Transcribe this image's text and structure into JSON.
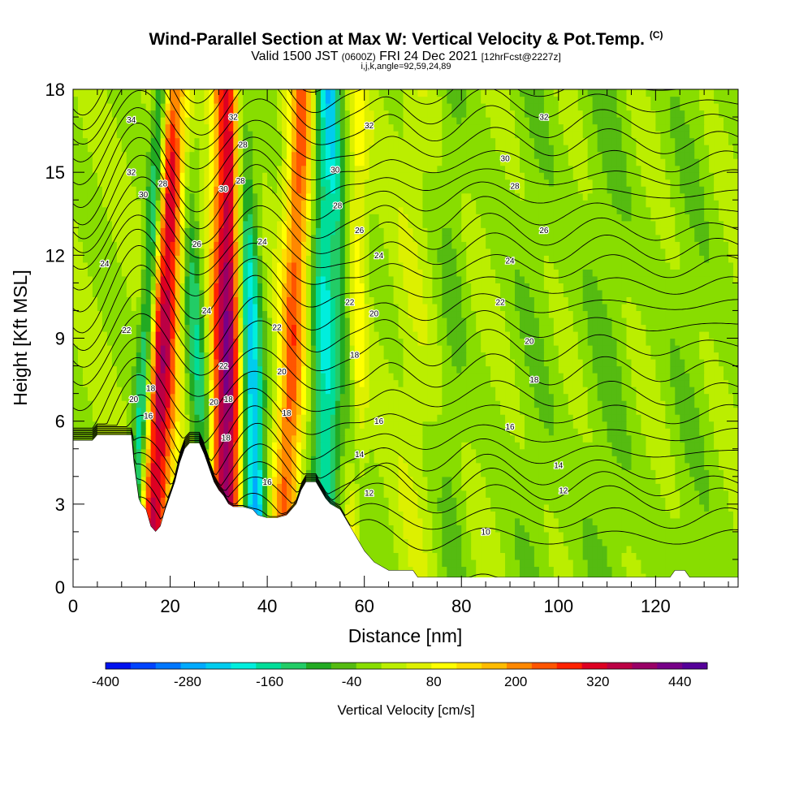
{
  "title": {
    "main": "Wind-Parallel Section at Max W: Vertical Velocity & Pot.Temp.",
    "mark": "(C)",
    "valid_prefix": "Valid 1500 JST",
    "valid_utc": "(0600Z)",
    "valid_date": "FRI 24 Dec 2021",
    "forecast": "[12hrFcst@2227z]",
    "indices": "i,j,k,angle=92,59,24,89"
  },
  "colors": {
    "terrain": "#ffffff",
    "contour": "#000000",
    "scale": [
      "#0011ee",
      "#0044ff",
      "#0077ff",
      "#00aaff",
      "#00ccee",
      "#00eedd",
      "#00dd99",
      "#22cc66",
      "#22aa22",
      "#55bb11",
      "#88dd00",
      "#bbee00",
      "#ddf000",
      "#ffff00",
      "#ffdd00",
      "#ffbb00",
      "#ff8800",
      "#ff5500",
      "#ff2200",
      "#dd0022",
      "#bb0044",
      "#990066",
      "#770088",
      "#550099"
    ]
  },
  "chart_data": {
    "type": "heatmap",
    "xlabel": "Distance [nm]",
    "ylabel": "Height [Kft MSL]",
    "xlim": [
      0,
      137
    ],
    "ylim": [
      0,
      18
    ],
    "xticks": [
      0,
      20,
      40,
      60,
      80,
      100,
      120
    ],
    "yticks": [
      0,
      3,
      6,
      9,
      12,
      15,
      18
    ],
    "colorbar": {
      "label": "Vertical Velocity [cm/s]",
      "min": -400,
      "max": 480,
      "step": 40,
      "tick_labels": [
        "-400",
        "-280",
        "-160",
        "-40",
        "80",
        "200",
        "320",
        "440"
      ]
    },
    "terrain_kft": [
      [
        0,
        5.3
      ],
      [
        4,
        5.3
      ],
      [
        5,
        5.5
      ],
      [
        12,
        5.5
      ],
      [
        12.5,
        4.5
      ],
      [
        13.5,
        3.2
      ],
      [
        14,
        3.0
      ],
      [
        15,
        2.8
      ],
      [
        16,
        2.2
      ],
      [
        17,
        2.0
      ],
      [
        18,
        2.2
      ],
      [
        19,
        2.8
      ],
      [
        20,
        3.3
      ],
      [
        21,
        3.8
      ],
      [
        22,
        4.5
      ],
      [
        23,
        5.0
      ],
      [
        24,
        5.2
      ],
      [
        26,
        5.2
      ],
      [
        27,
        4.8
      ],
      [
        28,
        4.3
      ],
      [
        29,
        3.8
      ],
      [
        30,
        3.5
      ],
      [
        31,
        3.3
      ],
      [
        32,
        3.0
      ],
      [
        33,
        2.9
      ],
      [
        35,
        2.9
      ],
      [
        37,
        2.8
      ],
      [
        38,
        2.6
      ],
      [
        40,
        2.5
      ],
      [
        42,
        2.5
      ],
      [
        44,
        2.6
      ],
      [
        46,
        3.0
      ],
      [
        47,
        3.5
      ],
      [
        48,
        3.8
      ],
      [
        50,
        3.8
      ],
      [
        51,
        3.5
      ],
      [
        52,
        3.2
      ],
      [
        53,
        3.0
      ],
      [
        55,
        2.8
      ],
      [
        56,
        2.5
      ],
      [
        57,
        2.2
      ],
      [
        58,
        1.9
      ],
      [
        59,
        1.6
      ],
      [
        60,
        1.3
      ],
      [
        61,
        1.1
      ],
      [
        62,
        0.9
      ],
      [
        65,
        0.6
      ],
      [
        70,
        0.6
      ],
      [
        71,
        0.35
      ],
      [
        123,
        0.35
      ],
      [
        124,
        0.6
      ],
      [
        126,
        0.6
      ],
      [
        127,
        0.35
      ],
      [
        137,
        0.35
      ]
    ],
    "vertical_velocity_bands_cm_s": [
      {
        "x_surface": 12,
        "slope_nm_per_kft": 0.35,
        "width_nm": 1.6,
        "w": -240
      },
      {
        "x_surface": 16,
        "slope_nm_per_kft": 0.3,
        "width_nm": 3.2,
        "w": 380
      },
      {
        "x_surface": 29,
        "slope_nm_per_kft": -0.4,
        "width_nm": 2.4,
        "w": -170
      },
      {
        "x_surface": 31,
        "slope_nm_per_kft": 0.1,
        "width_nm": 3.6,
        "w": 440
      },
      {
        "x_surface": 38,
        "slope_nm_per_kft": -0.2,
        "width_nm": 2.4,
        "w": -330
      },
      {
        "x_surface": 43,
        "slope_nm_per_kft": 0.25,
        "width_nm": 2.8,
        "w": 260
      },
      {
        "x_surface": 52,
        "slope_nm_per_kft": 0.0,
        "width_nm": 3.0,
        "w": -200
      },
      {
        "x_surface": 58,
        "slope_nm_per_kft": 0.05,
        "width_nm": 2.0,
        "w": 100
      },
      {
        "x_surface": 60,
        "slope_nm_per_kft": -0.4,
        "width_nm": 1.4,
        "w": -80
      },
      {
        "x_surface": 70,
        "slope_nm_per_kft": 0.0,
        "width_nm": 4.0,
        "w": 30
      },
      {
        "x_surface": 78,
        "slope_nm_per_kft": 0.0,
        "width_nm": 3.0,
        "w": -40
      },
      {
        "x_surface": 95,
        "slope_nm_per_kft": 0.0,
        "width_nm": 5.0,
        "w": -30
      },
      {
        "x_surface": 110,
        "slope_nm_per_kft": 0.0,
        "width_nm": 5.0,
        "w": -40
      },
      {
        "x_surface": 127,
        "slope_nm_per_kft": 0.0,
        "width_nm": 5.0,
        "w": -30
      }
    ],
    "potential_temperature_labels": [
      {
        "text": "34",
        "x": 12,
        "y": 16.9
      },
      {
        "text": "32",
        "x": 12,
        "y": 15.0
      },
      {
        "text": "30",
        "x": 14.5,
        "y": 14.2
      },
      {
        "text": "28",
        "x": 18.5,
        "y": 14.6
      },
      {
        "text": "24",
        "x": 6.5,
        "y": 11.7
      },
      {
        "text": "22",
        "x": 11,
        "y": 9.3
      },
      {
        "text": "20",
        "x": 12.5,
        "y": 6.8
      },
      {
        "text": "18",
        "x": 16,
        "y": 7.2
      },
      {
        "text": "16",
        "x": 15.5,
        "y": 6.2
      },
      {
        "text": "26",
        "x": 25.5,
        "y": 12.4
      },
      {
        "text": "24",
        "x": 27.5,
        "y": 10.0
      },
      {
        "text": "22",
        "x": 31,
        "y": 8.0
      },
      {
        "text": "20",
        "x": 29,
        "y": 6.7
      },
      {
        "text": "18",
        "x": 32,
        "y": 6.8
      },
      {
        "text": "18",
        "x": 31.5,
        "y": 5.4
      },
      {
        "text": "32",
        "x": 33,
        "y": 17.0
      },
      {
        "text": "28",
        "x": 35,
        "y": 16.0
      },
      {
        "text": "30",
        "x": 31,
        "y": 14.4
      },
      {
        "text": "28",
        "x": 34.5,
        "y": 14.7
      },
      {
        "text": "24",
        "x": 39,
        "y": 12.5
      },
      {
        "text": "22",
        "x": 42,
        "y": 9.4
      },
      {
        "text": "20",
        "x": 43,
        "y": 7.8
      },
      {
        "text": "18",
        "x": 44,
        "y": 6.3
      },
      {
        "text": "16",
        "x": 40,
        "y": 3.8
      },
      {
        "text": "30",
        "x": 54,
        "y": 15.1
      },
      {
        "text": "28",
        "x": 54.5,
        "y": 13.8
      },
      {
        "text": "26",
        "x": 59,
        "y": 12.9
      },
      {
        "text": "24",
        "x": 63,
        "y": 12.0
      },
      {
        "text": "22",
        "x": 57,
        "y": 10.3
      },
      {
        "text": "20",
        "x": 62,
        "y": 9.9
      },
      {
        "text": "18",
        "x": 58,
        "y": 8.4
      },
      {
        "text": "16",
        "x": 63,
        "y": 6.0
      },
      {
        "text": "14",
        "x": 59,
        "y": 4.8
      },
      {
        "text": "12",
        "x": 61,
        "y": 3.4
      },
      {
        "text": "32",
        "x": 61,
        "y": 16.7
      },
      {
        "text": "32",
        "x": 97,
        "y": 17.0
      },
      {
        "text": "30",
        "x": 89,
        "y": 15.5
      },
      {
        "text": "28",
        "x": 91,
        "y": 14.5
      },
      {
        "text": "26",
        "x": 97,
        "y": 12.9
      },
      {
        "text": "24",
        "x": 90,
        "y": 11.8
      },
      {
        "text": "22",
        "x": 88,
        "y": 10.3
      },
      {
        "text": "20",
        "x": 94,
        "y": 8.9
      },
      {
        "text": "18",
        "x": 95,
        "y": 7.5
      },
      {
        "text": "16",
        "x": 90,
        "y": 5.8
      },
      {
        "text": "14",
        "x": 100,
        "y": 4.4
      },
      {
        "text": "12",
        "x": 101,
        "y": 3.5
      },
      {
        "text": "10",
        "x": 85,
        "y": 2.0
      }
    ]
  }
}
